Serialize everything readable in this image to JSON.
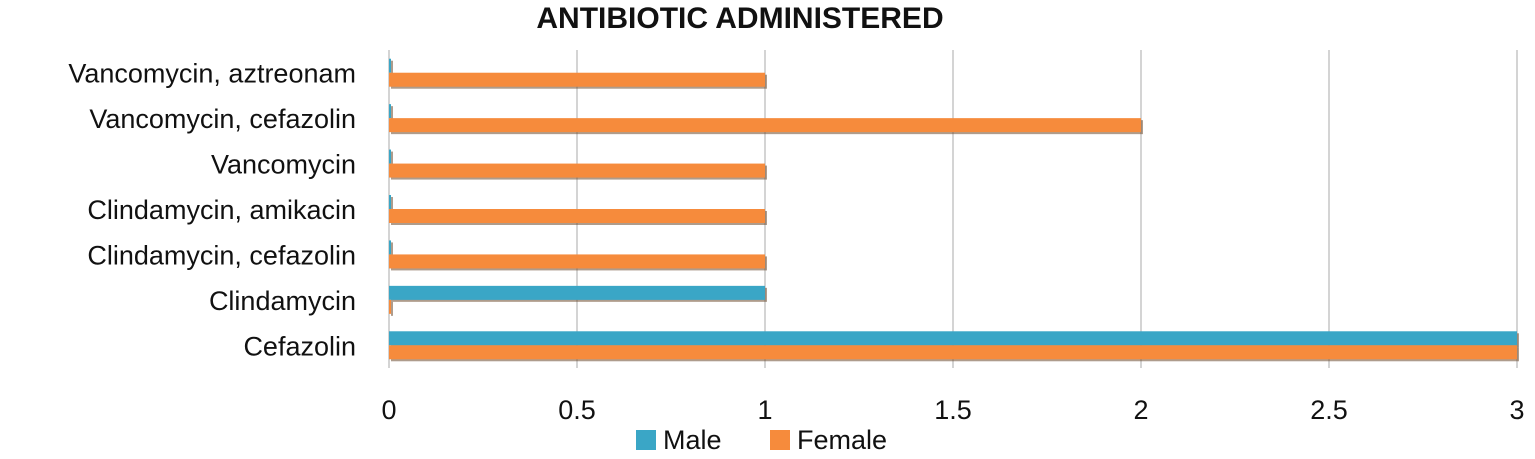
{
  "chart_data": {
    "type": "bar",
    "orientation": "horizontal",
    "title": "ANTIBIOTIC ADMINISTERED",
    "xlabel": "",
    "ylabel": "",
    "categories": [
      "Cefazolin",
      "Clindamycin",
      "Clindamycin, cefazolin",
      "Clindamycin, amikacin",
      "Vancomycin",
      "Vancomycin, cefazolin",
      "Vancomycin, aztreonam"
    ],
    "series": [
      {
        "name": "Male",
        "color": "#3aa6c6",
        "values": [
          3,
          1,
          0,
          0,
          0,
          0,
          0
        ]
      },
      {
        "name": "Female",
        "color": "#f68b3c",
        "values": [
          3,
          0,
          1,
          1,
          1,
          2,
          1
        ]
      }
    ],
    "xlim": [
      0,
      3
    ],
    "xticks": [
      0,
      0.5,
      1,
      1.5,
      2,
      2.5,
      3
    ],
    "xtick_labels": [
      "0",
      "0.5",
      "1",
      "1.5",
      "2",
      "2.5",
      "3"
    ],
    "grid": "vertical",
    "legend_position": "bottom"
  }
}
